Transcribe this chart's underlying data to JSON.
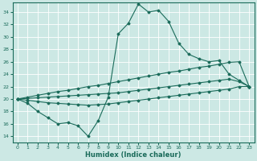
{
  "title": "",
  "xlabel": "Humidex (Indice chaleur)",
  "ylabel": "",
  "xlim": [
    -0.5,
    23.5
  ],
  "ylim": [
    13,
    35.5
  ],
  "yticks": [
    14,
    16,
    18,
    20,
    22,
    24,
    26,
    28,
    30,
    32,
    34
  ],
  "xticks": [
    0,
    1,
    2,
    3,
    4,
    5,
    6,
    7,
    8,
    9,
    10,
    11,
    12,
    13,
    14,
    15,
    16,
    17,
    18,
    19,
    20,
    21,
    22,
    23
  ],
  "bg_color": "#cce8e4",
  "grid_color": "#ffffff",
  "line_color": "#1a6b5a",
  "series": {
    "line1": [
      20.0,
      19.3,
      18.0,
      17.0,
      16.0,
      16.2,
      15.7,
      14.0,
      16.5,
      20.3,
      30.5,
      32.2,
      35.3,
      34.0,
      34.3,
      32.5,
      29.0,
      27.2,
      26.5,
      26.0,
      26.2,
      24.0,
      23.0,
      22.0
    ],
    "line2": [
      20.0,
      20.3,
      20.6,
      20.9,
      21.2,
      21.4,
      21.7,
      22.0,
      22.2,
      22.5,
      22.8,
      23.1,
      23.4,
      23.7,
      24.0,
      24.3,
      24.5,
      24.8,
      25.1,
      25.3,
      25.6,
      25.9,
      26.0,
      22.0
    ],
    "line3": [
      20.0,
      20.1,
      20.2,
      20.3,
      20.4,
      20.5,
      20.6,
      20.7,
      20.8,
      20.9,
      21.0,
      21.2,
      21.4,
      21.6,
      21.8,
      22.0,
      22.2,
      22.4,
      22.6,
      22.8,
      23.0,
      23.2,
      22.8,
      22.0
    ],
    "line4": [
      20.0,
      19.8,
      19.6,
      19.4,
      19.3,
      19.2,
      19.1,
      19.0,
      19.1,
      19.2,
      19.4,
      19.6,
      19.8,
      20.0,
      20.2,
      20.4,
      20.6,
      20.8,
      21.0,
      21.2,
      21.4,
      21.6,
      22.0,
      22.0
    ]
  },
  "figsize": [
    3.2,
    2.0
  ],
  "dpi": 100
}
